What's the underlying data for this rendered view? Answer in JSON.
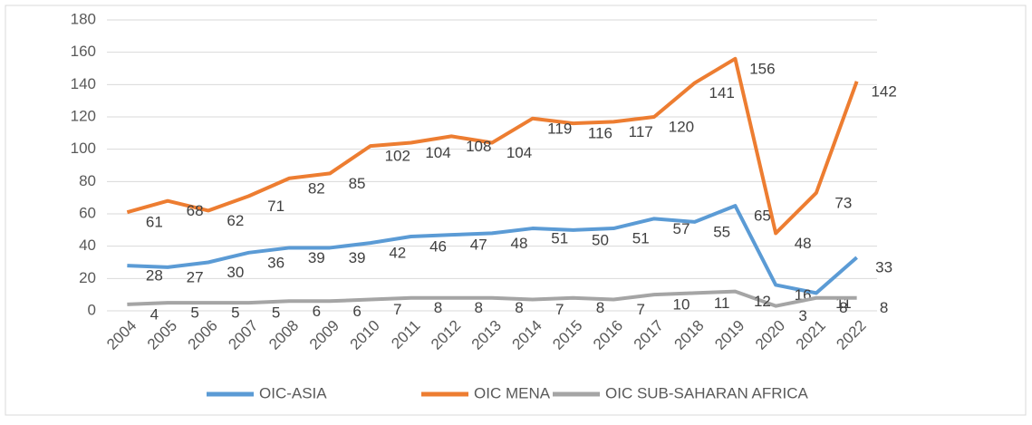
{
  "chart_data": {
    "type": "line",
    "categories": [
      "2004",
      "2005",
      "2006",
      "2007",
      "2008",
      "2009",
      "2010",
      "2011",
      "2012",
      "2013",
      "2014",
      "2015",
      "2016",
      "2017",
      "2018",
      "2019",
      "2020",
      "2021",
      "2022"
    ],
    "series": [
      {
        "name": "OIC-ASIA",
        "color": "#5b9bd5",
        "values": [
          28,
          27,
          30,
          36,
          39,
          39,
          42,
          46,
          47,
          48,
          51,
          50,
          51,
          57,
          55,
          65,
          16,
          11,
          33
        ]
      },
      {
        "name": "OIC MENA",
        "color": "#ed7d31",
        "values": [
          61,
          68,
          62,
          71,
          82,
          85,
          102,
          104,
          108,
          104,
          119,
          116,
          117,
          120,
          141,
          156,
          48,
          73,
          142
        ]
      },
      {
        "name": "OIC SUB-SAHARAN AFRICA",
        "color": "#a5a5a5",
        "values": [
          4,
          5,
          5,
          5,
          6,
          6,
          7,
          8,
          8,
          8,
          7,
          8,
          7,
          10,
          11,
          12,
          3,
          8,
          8
        ]
      }
    ],
    "ylim": [
      0,
      180
    ],
    "yticks": [
      0,
      20,
      40,
      60,
      80,
      100,
      120,
      140,
      160,
      180
    ],
    "grid": true,
    "legend": "bottom"
  }
}
